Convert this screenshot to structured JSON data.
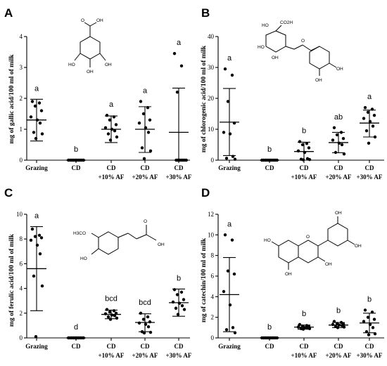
{
  "chart_data": [
    {
      "type": "scatter",
      "panel": "A",
      "ylabel": "mg of gallic acid/100 ml of milk",
      "ylim": [
        0,
        4
      ],
      "yticks": [
        0,
        1,
        2,
        3,
        4
      ],
      "categories": [
        {
          "l1": "Grazing",
          "l2": ""
        },
        {
          "l1": "CD",
          "l2": ""
        },
        {
          "l1": "CD",
          "l2": "+10% AF"
        },
        {
          "l1": "CD",
          "l2": "+20% AF"
        },
        {
          "l1": "CD",
          "l2": "+30% AF"
        }
      ],
      "groups": [
        {
          "mean": 1.3,
          "sd_low": 0.62,
          "sd_high": 1.97,
          "letter": "a",
          "points": [
            1.9,
            1.85,
            1.75,
            1.6,
            1.4,
            1.3,
            1.2,
            0.9,
            0.85,
            0.7
          ]
        },
        {
          "mean": 0.0,
          "sd_low": 0.0,
          "sd_high": 0.0,
          "letter": "b",
          "points": [
            0,
            0,
            0,
            0,
            0,
            0,
            0,
            0,
            0,
            0
          ]
        },
        {
          "mean": 1.0,
          "sd_low": 0.57,
          "sd_high": 1.43,
          "letter": "a",
          "points": [
            1.45,
            1.4,
            1.3,
            1.15,
            1.05,
            1.0,
            0.95,
            0.85,
            0.75,
            0.65
          ]
        },
        {
          "mean": 1.0,
          "sd_low": 0.25,
          "sd_high": 1.73,
          "letter": "a",
          "points": [
            1.9,
            1.7,
            1.5,
            1.3,
            1.2,
            1.05,
            0.9,
            0.4,
            0.3,
            0.05
          ]
        },
        {
          "mean": 0.9,
          "sd_low": 0.0,
          "sd_high": 2.33,
          "letter": "a",
          "points": [
            3.45,
            3.05,
            2.2,
            0,
            0,
            0,
            0,
            0,
            0,
            0
          ]
        }
      ],
      "molecule": {
        "labels": [
          "O",
          "OH",
          "HO",
          "OH",
          "OH"
        ]
      }
    },
    {
      "type": "scatter",
      "panel": "B",
      "ylabel": "mg of chlorogenic acid/100 ml of milk",
      "ylim": [
        0,
        40
      ],
      "yticks": [
        0,
        10,
        20,
        30,
        40
      ],
      "categories": [
        {
          "l1": "Grazing",
          "l2": ""
        },
        {
          "l1": "CD",
          "l2": ""
        },
        {
          "l1": "CD",
          "l2": "+10% AF"
        },
        {
          "l1": "CD",
          "l2": "+20% AF"
        },
        {
          "l1": "CD",
          "l2": "+30% AF"
        }
      ],
      "groups": [
        {
          "mean": 12.3,
          "sd_low": 1.5,
          "sd_high": 23.2,
          "letter": "a",
          "points": [
            29.5,
            27.5,
            19.0,
            12.0,
            9.0,
            8.5,
            1.2,
            0.6,
            0.3
          ]
        },
        {
          "mean": 0.0,
          "sd_low": 0.0,
          "sd_high": 0.0,
          "letter": "b",
          "points": [
            0,
            0,
            0,
            0,
            0,
            0,
            0,
            0,
            0,
            0
          ]
        },
        {
          "mean": 2.8,
          "sd_low": 0.0,
          "sd_high": 5.8,
          "letter": "b",
          "points": [
            6.0,
            5.4,
            5.0,
            4.0,
            3.0,
            2.5,
            0.5,
            0.3,
            0.2,
            0.1
          ]
        },
        {
          "mean": 5.7,
          "sd_low": 2.4,
          "sd_high": 9.0,
          "letter": "ab",
          "points": [
            10.5,
            9.0,
            8.2,
            7.0,
            6.5,
            5.5,
            5.0,
            2.5,
            2.0
          ]
        },
        {
          "mean": 12.0,
          "sd_low": 7.5,
          "sd_high": 16.2,
          "letter": "a",
          "points": [
            17.0,
            16.5,
            15.5,
            14.5,
            13.5,
            12.5,
            11.0,
            9.5,
            7.5,
            5.5
          ]
        }
      ],
      "molecule": {
        "labels": [
          "HO",
          "CO2H",
          "HO",
          "OH",
          "O",
          "OH",
          "OH"
        ]
      }
    },
    {
      "type": "scatter",
      "panel": "C",
      "ylabel": "mg of ferulic acid/100 ml of milk",
      "ylim": [
        0,
        10
      ],
      "yticks": [
        0,
        2,
        4,
        6,
        8,
        10
      ],
      "categories": [
        {
          "l1": "Grazing",
          "l2": ""
        },
        {
          "l1": "CD",
          "l2": ""
        },
        {
          "l1": "CD",
          "l2": "+10% AF"
        },
        {
          "l1": "CD",
          "l2": "+20% AF"
        },
        {
          "l1": "CD",
          "l2": "+30% AF"
        }
      ],
      "groups": [
        {
          "mean": 5.6,
          "sd_low": 2.2,
          "sd_high": 9.0,
          "letter": "a",
          "points": [
            8.8,
            8.3,
            8.2,
            8.1,
            7.9,
            7.5,
            6.8,
            5.0,
            4.2,
            0.1
          ]
        },
        {
          "mean": 0.0,
          "sd_low": 0.0,
          "sd_high": 0.0,
          "letter": "d",
          "points": [
            0,
            0,
            0,
            0,
            0,
            0,
            0,
            0,
            0,
            0
          ]
        },
        {
          "mean": 1.9,
          "sd_low": 1.55,
          "sd_high": 2.25,
          "letter": "bcd",
          "points": [
            2.3,
            2.2,
            2.1,
            2.0,
            1.95,
            1.85,
            1.8,
            1.7,
            1.6,
            1.5
          ]
        },
        {
          "mean": 1.25,
          "sd_low": 0.5,
          "sd_high": 1.95,
          "letter": "bcd",
          "points": [
            2.0,
            1.7,
            1.5,
            1.3,
            1.2,
            1.1,
            0.9,
            0.5,
            0.45,
            0.4
          ]
        },
        {
          "mean": 2.85,
          "sd_low": 1.75,
          "sd_high": 3.95,
          "letter": "b",
          "points": [
            3.9,
            3.7,
            3.5,
            3.1,
            2.9,
            2.8,
            2.6,
            2.4,
            2.3,
            1.9
          ]
        }
      ],
      "molecule": {
        "labels": [
          "H3CO",
          "HO",
          "O",
          "OH"
        ]
      }
    },
    {
      "type": "scatter",
      "panel": "D",
      "ylabel": "mg of catechin/100 ml of milk",
      "ylim": [
        0,
        12
      ],
      "yticks": [
        0,
        2,
        4,
        6,
        8,
        10,
        12
      ],
      "categories": [
        {
          "l1": "Grazing",
          "l2": ""
        },
        {
          "l1": "CD",
          "l2": ""
        },
        {
          "l1": "CD",
          "l2": "+10% AF"
        },
        {
          "l1": "CD",
          "l2": "+20% AF"
        },
        {
          "l1": "CD",
          "l2": "+30% AF"
        }
      ],
      "groups": [
        {
          "mean": 4.2,
          "sd_low": 0.6,
          "sd_high": 7.8,
          "letter": "a",
          "points": [
            10.0,
            9.5,
            6.5,
            6.2,
            4.5,
            3.2,
            1.0,
            0.8,
            0.5
          ]
        },
        {
          "mean": 0.0,
          "sd_low": 0.0,
          "sd_high": 0.0,
          "letter": "b",
          "points": [
            0,
            0,
            0,
            0,
            0,
            0,
            0,
            0,
            0,
            0
          ]
        },
        {
          "mean": 1.05,
          "sd_low": 0.85,
          "sd_high": 1.25,
          "letter": "b",
          "points": [
            1.3,
            1.2,
            1.15,
            1.1,
            1.05,
            1.0,
            0.95,
            0.9,
            0.9,
            0.85
          ]
        },
        {
          "mean": 1.25,
          "sd_low": 1.0,
          "sd_high": 1.5,
          "letter": "b",
          "points": [
            1.6,
            1.5,
            1.4,
            1.35,
            1.3,
            1.25,
            1.2,
            1.1,
            1.05,
            1.0
          ]
        },
        {
          "mean": 1.45,
          "sd_low": 0.5,
          "sd_high": 2.4,
          "letter": "b",
          "points": [
            2.7,
            2.5,
            2.0,
            1.8,
            1.6,
            1.3,
            1.0,
            0.6,
            0.4,
            0.3
          ]
        }
      ],
      "molecule": {
        "labels": [
          "OH",
          "OH",
          "HO",
          "O",
          "OH",
          "OH"
        ]
      }
    }
  ]
}
